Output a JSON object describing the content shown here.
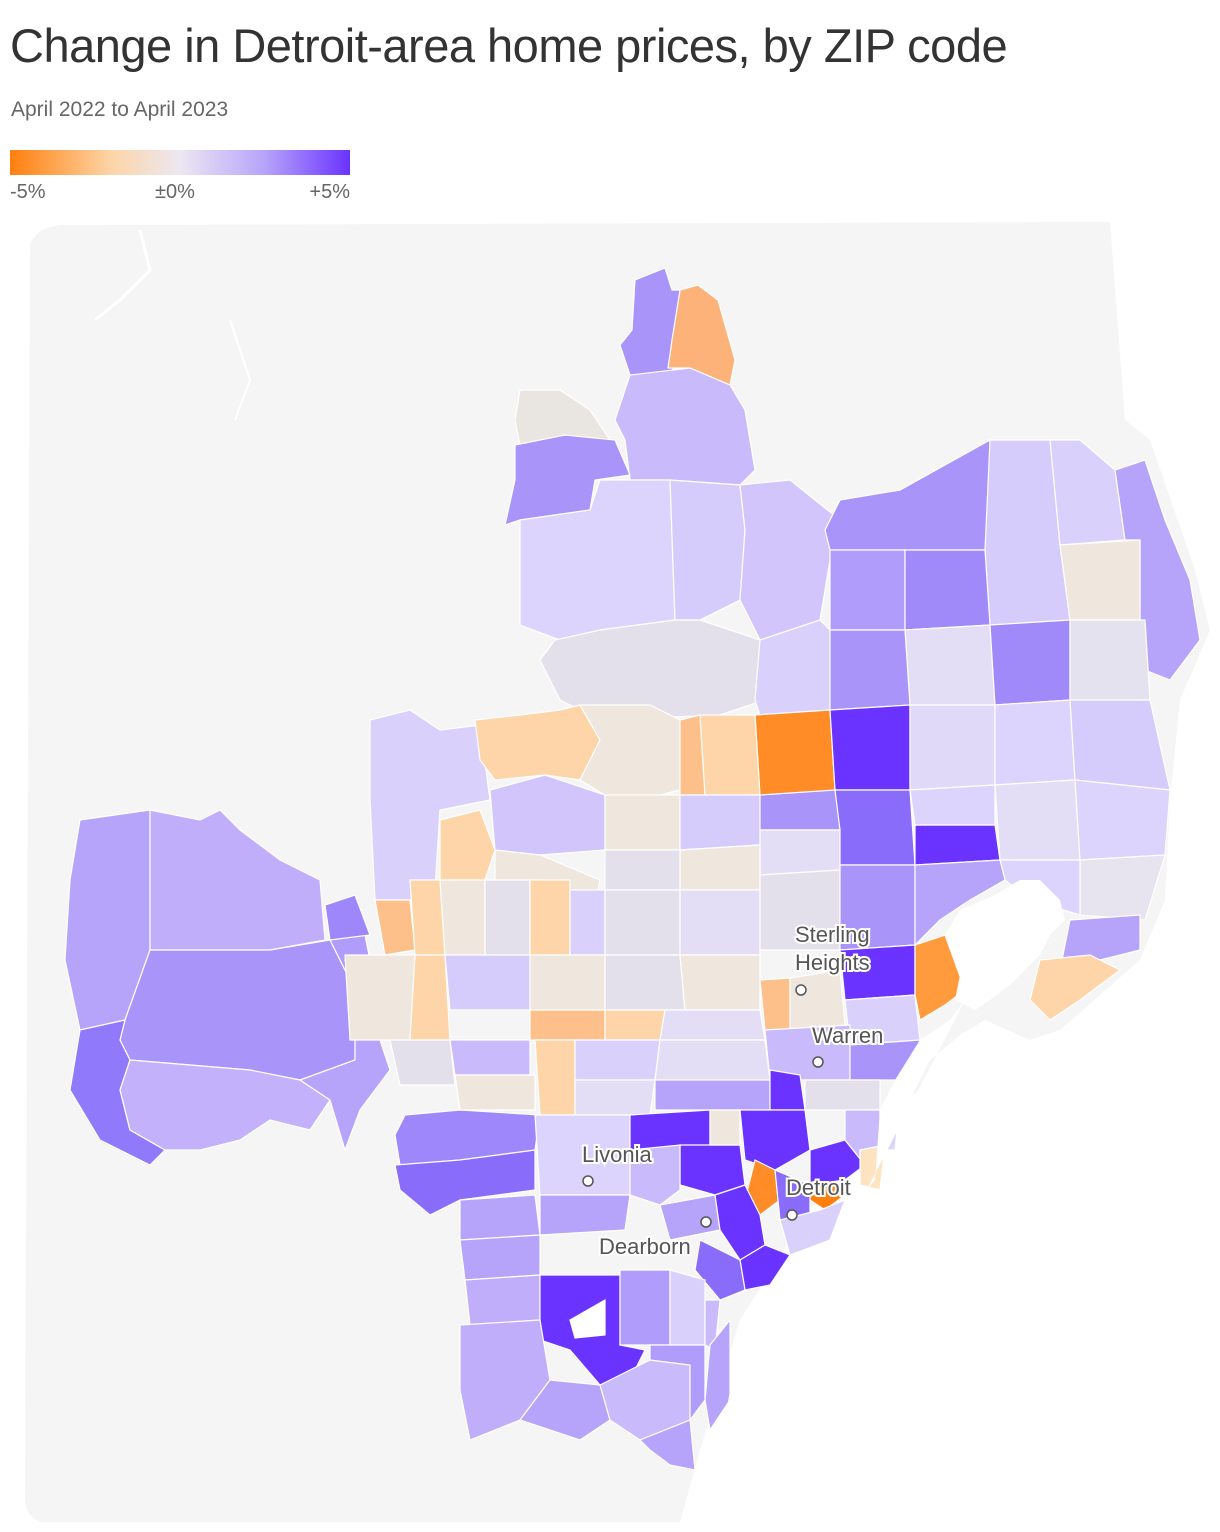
{
  "header": {
    "title": "Change in Detroit-area home prices, by ZIP code",
    "subtitle": "April 2022 to April 2023"
  },
  "legend": {
    "labels": [
      "-5%",
      "±0%",
      "+5%"
    ],
    "colors": {
      "low": "#ff7f0e",
      "mid_low": "#fde3c0",
      "neutral": "#ece7f2",
      "mid_high": "#b6a3fa",
      "high": "#6a33ff"
    }
  },
  "map": {
    "background_color": "#f5f5f5",
    "water_color": "#ffffff",
    "cities": [
      {
        "name": "Sterling\nHeights",
        "line1": "Sterling",
        "line2": "Heights"
      },
      {
        "name": "Warren"
      },
      {
        "name": "Livonia"
      },
      {
        "name": "Detroit"
      },
      {
        "name": "Dearborn"
      }
    ]
  }
}
